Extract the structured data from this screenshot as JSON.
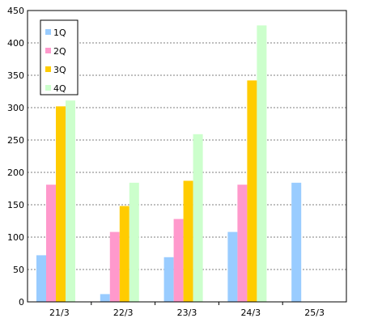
{
  "chart_data": {
    "type": "bar",
    "categories": [
      "21/3",
      "22/3",
      "23/3",
      "24/3",
      "25/3"
    ],
    "series": [
      {
        "name": "1Q",
        "color": "#99ccff",
        "values": [
          72,
          12,
          69,
          108,
          184
        ]
      },
      {
        "name": "2Q",
        "color": "#ff99cc",
        "values": [
          181,
          108,
          128,
          181,
          null
        ]
      },
      {
        "name": "3Q",
        "color": "#ffcc00",
        "values": [
          302,
          148,
          187,
          342,
          null
        ]
      },
      {
        "name": "4Q",
        "color": "#ccffcc",
        "values": [
          311,
          184,
          259,
          427,
          null
        ]
      }
    ],
    "title": "",
    "xlabel": "",
    "ylabel": "",
    "ylim": [
      0,
      450
    ],
    "yticks": [
      "0",
      "50",
      "100",
      "150",
      "200",
      "250",
      "300",
      "350",
      "400",
      "450"
    ],
    "grid": "horizontal dashed",
    "legend_position": "top-left"
  }
}
